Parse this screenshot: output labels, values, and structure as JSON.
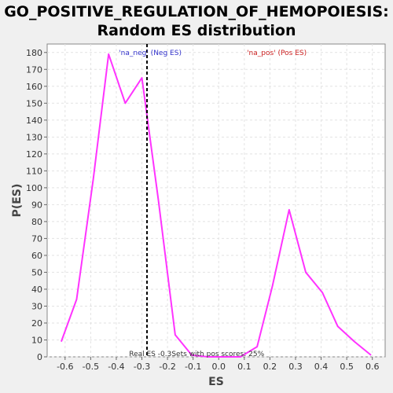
{
  "title_line1": "GO_POSITIVE_REGULATION_OF_HEMOPOIESIS:",
  "title_line2": "Random ES distribution",
  "chart_data": {
    "type": "line",
    "xlabel": "ES",
    "ylabel": "P(ES)",
    "xlim": [
      -0.67,
      0.65
    ],
    "ylim": [
      0,
      185
    ],
    "x_ticks": [
      -0.6,
      -0.5,
      -0.4,
      -0.3,
      -0.2,
      -0.1,
      0.0,
      0.1,
      0.2,
      0.3,
      0.4,
      0.5,
      0.6
    ],
    "x_tick_labels": [
      "-0.6",
      "-0.5",
      "-0.4",
      "-0.3",
      "-0.2",
      "-0.1",
      "0.0",
      "0.1",
      "0.2",
      "0.3",
      "0.4",
      "0.5",
      "0.6"
    ],
    "y_ticks": [
      0,
      10,
      20,
      30,
      40,
      50,
      60,
      70,
      80,
      90,
      100,
      110,
      120,
      130,
      140,
      150,
      160,
      170,
      180
    ],
    "grid": true,
    "series": [
      {
        "color": "#ff33ff",
        "x": [
          -0.615,
          -0.555,
          -0.49,
          -0.43,
          -0.365,
          -0.3,
          -0.235,
          -0.17,
          -0.105,
          -0.04,
          0.02,
          0.085,
          0.15,
          0.21,
          0.275,
          0.34,
          0.405,
          0.465,
          0.53,
          0.595
        ],
        "y": [
          9,
          34,
          105,
          179,
          150,
          165,
          92,
          13,
          1,
          0,
          0,
          0,
          6,
          42,
          87,
          50,
          38,
          18,
          9,
          1
        ]
      }
    ],
    "real_es": -0.28,
    "real_es_color": "#000000",
    "annotations": {
      "neg_label": "'na_neg' (Neg ES)",
      "neg_color": "#3333cc",
      "pos_label": "'na_pos' (Pos ES)",
      "pos_color": "#cc2222",
      "bottom_text": "Real ES -0.3Sets with pos scores: 25%"
    }
  }
}
